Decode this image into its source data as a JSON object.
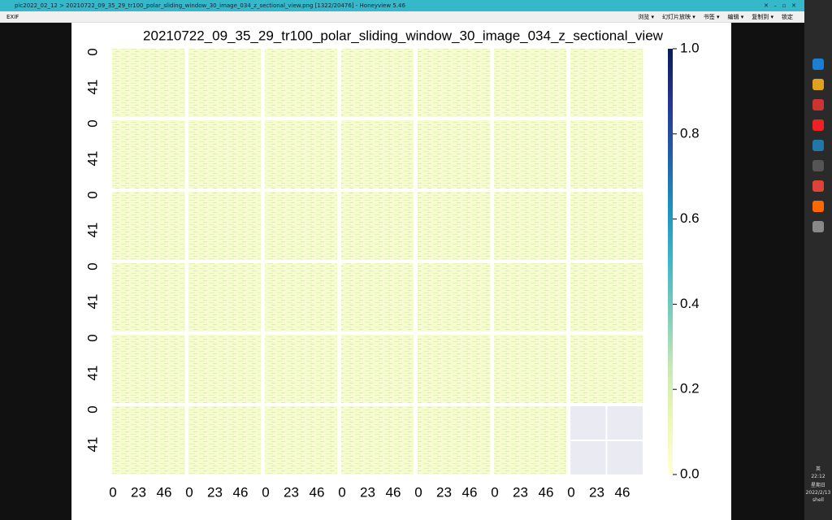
{
  "window": {
    "title": "pic2022_02_12 > 20210722_09_35_29_tr100_polar_sliding_window_30_image_034_z_sectional_view.png [1322/20476] - Honeyview 5.46",
    "exif": "EXIF",
    "menus": [
      "浏览 ▾",
      "幻灯片放映 ▾",
      "书签 ▾",
      "编辑 ▾",
      "复制到 ▾",
      "锁定"
    ],
    "tray": [
      "英",
      "22:12",
      "星期日",
      "2022/2/13",
      "shell"
    ]
  },
  "chart_data": {
    "type": "heatmap-grid",
    "title": "20210722_09_35_29_tr100_polar_sliding_window_30_image_034_z_sectional_view",
    "grid_rows": 6,
    "grid_cols": 7,
    "panel_count": 41,
    "xlim": [
      0,
      65
    ],
    "xticks": [
      0,
      23,
      46
    ],
    "ylim": [
      0,
      80
    ],
    "yticks": [
      0,
      41
    ],
    "colorbar": {
      "lim": [
        0,
        1
      ],
      "ticks": [
        {
          "value": 0,
          "label": "0.0"
        },
        {
          "value": 0.2,
          "label": "0.2"
        },
        {
          "value": 0.4,
          "label": "0.4"
        },
        {
          "value": 0.6,
          "label": "0.6"
        },
        {
          "value": 0.8,
          "label": "0.8"
        },
        {
          "value": 1,
          "label": "1.0"
        }
      ],
      "colors": [
        "#ffffd9",
        "#edf8b1",
        "#c7e9b4",
        "#7fcdbb",
        "#41b6c4",
        "#1d91c0",
        "#225ea8",
        "#253494",
        "#081d58"
      ]
    }
  }
}
